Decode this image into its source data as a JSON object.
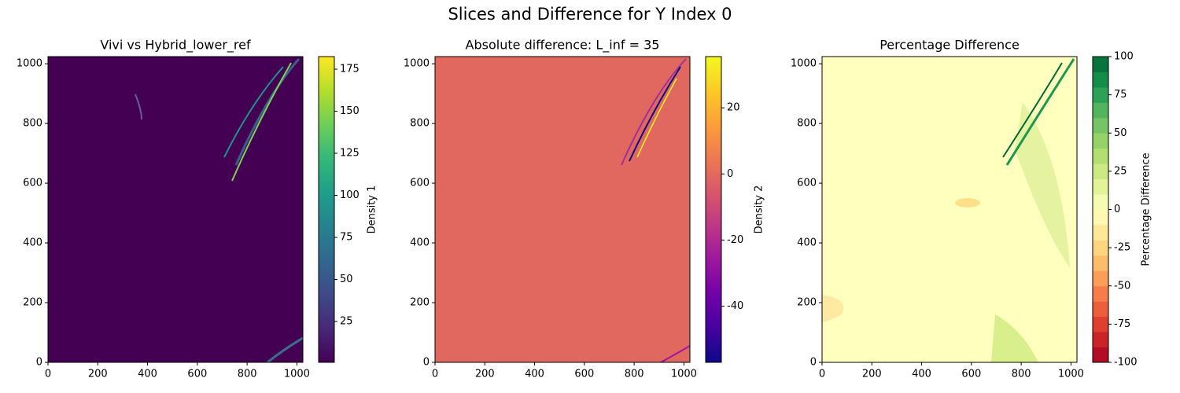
{
  "title": "Slices and Difference for Y Index 0",
  "chart_data": [
    {
      "type": "heatmap",
      "title": "Vivi vs Hybrid_lower_ref",
      "field_color": "#440154",
      "xlim": [
        0,
        1024
      ],
      "ylim": [
        0,
        1024
      ],
      "xticks": [
        0,
        200,
        400,
        600,
        800,
        1000
      ],
      "yticks": [
        0,
        200,
        400,
        600,
        800,
        1000
      ],
      "colorbar": {
        "label": "Density 1",
        "colormap": "viridis",
        "lim": [
          0.7,
          182.5
        ],
        "ticks": [
          25,
          50,
          75,
          100,
          125,
          150,
          175
        ]
      }
    },
    {
      "type": "heatmap",
      "title": "Absolute difference: L_inf = 35",
      "field_color": "#e0685e",
      "xlim": [
        0,
        1024
      ],
      "ylim": [
        0,
        1024
      ],
      "xticks": [
        0,
        200,
        400,
        600,
        800,
        1000
      ],
      "yticks": [
        0,
        200,
        400,
        600,
        800,
        1000
      ],
      "colorbar": {
        "label": "Density 2",
        "colormap": "plasma",
        "lim": [
          -57,
          35.5
        ],
        "ticks": [
          -40,
          -20,
          0,
          20
        ]
      }
    },
    {
      "type": "heatmap",
      "title": "Percentage Difference",
      "field_color": "#ffffbe",
      "xlim": [
        0,
        1024
      ],
      "ylim": [
        0,
        1024
      ],
      "xticks": [
        0,
        200,
        400,
        600,
        800,
        1000
      ],
      "yticks": [
        0,
        200,
        400,
        600,
        800,
        1000
      ],
      "colorbar": {
        "label": "Percentage Difference",
        "colormap": "RdYlGn",
        "levels": 20,
        "lim": [
          -100,
          100
        ],
        "ticks": [
          -100,
          -75,
          -50,
          -25,
          0,
          25,
          50,
          75,
          100
        ]
      }
    }
  ]
}
